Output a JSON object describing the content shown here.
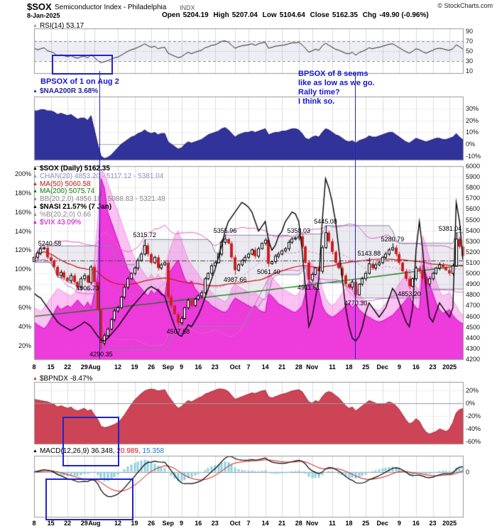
{
  "header": {
    "symbol": "$SOX",
    "name": "Semiconductor Index - Philadelphia",
    "exchange": "INDX",
    "credit": "© StockCharts.com",
    "date": "8-Jan-2025",
    "open_label": "Open",
    "open": "5204.19",
    "high_label": "High",
    "high": "5207.04",
    "low_label": "Low",
    "low": "5104.64",
    "close_label": "Close",
    "close": "5162.35",
    "chg_label": "Chg",
    "chg": "-49.90 (-0.96%)"
  },
  "annotations": {
    "note1": "BPSOX of 1 on Aug 2",
    "note2_lines": [
      "BPSOX of 8 seems",
      "like as low as we go.",
      "Rally time?",
      "I think so."
    ],
    "color": "#1515d0"
  },
  "panels": {
    "rsi": {
      "label": "RSI(14) 53.17",
      "marker_color": "#999999"
    },
    "naa200r": {
      "label": "$NAA200R 3.68%",
      "marker_color": "#2a2a9a"
    },
    "sox": {
      "legend": [
        {
          "text": "$SOX (Daily) 5162.35",
          "color": "#000000",
          "bold": true
        },
        {
          "text": "CHAN(20) 4853.20 - 5117.12 - 5381.04",
          "color": "#8f8fc0",
          "bold": false
        },
        {
          "text": "MA(50) 5060.58",
          "color": "#cc1111",
          "bold": false
        },
        {
          "text": "MA(200) 5075.74",
          "color": "#0b7a0b",
          "bold": false
        },
        {
          "text": "BB(20,2.0) 4856.18 - 5088.83 - 5321.48",
          "color": "#888888",
          "bold": false
        },
        {
          "text": "$NASI 21.57% (7 Jan)",
          "color": "#000000",
          "bold": true
        },
        {
          "text": "%B(20,2,0) 0.66",
          "color": "#888888",
          "bold": false
        },
        {
          "text": "$VIX 43.09%",
          "color": "#cc00cc",
          "bold": false
        }
      ]
    },
    "bpndx": {
      "label": "$BPNDX -8.47%",
      "marker_color": "#cc3344"
    },
    "macd": {
      "name": "MACD(12,26,9)",
      "v1": "36.348,",
      "v2": "20.989,",
      "v3": "15.358",
      "marker_color": "#000000"
    }
  },
  "chart_data": {
    "type": "multi-panel-financial",
    "title": "$SOX Semiconductor Index - Philadelphia (Daily)",
    "x_ticks": [
      [
        "8",
        0
      ],
      [
        "15",
        5
      ],
      [
        "22",
        10
      ],
      [
        "29",
        15
      ],
      [
        "Aug",
        18
      ],
      [
        "12",
        25
      ],
      [
        "19",
        30
      ],
      [
        "26",
        35
      ],
      [
        "Sep",
        40
      ],
      [
        "9",
        44
      ],
      [
        "16",
        49
      ],
      [
        "23",
        54
      ],
      [
        "Oct",
        60
      ],
      [
        "7",
        64
      ],
      [
        "14",
        69
      ],
      [
        "21",
        74
      ],
      [
        "28",
        79
      ],
      [
        "Nov",
        83
      ],
      [
        "11",
        89
      ],
      [
        "18",
        94
      ],
      [
        "25",
        99
      ],
      [
        "Dec",
        104
      ],
      [
        "9",
        109
      ],
      [
        "16",
        114
      ],
      [
        "23",
        119
      ],
      [
        "2025",
        124
      ]
    ],
    "axes": {
      "rsi": [
        "90",
        "70",
        "50",
        "30",
        "10"
      ],
      "naa200r": [
        "30%",
        "20%",
        "10%",
        "0%",
        "-10%"
      ],
      "sox_right": [
        "6000",
        "5900",
        "5800",
        "5700",
        "5600",
        "5500",
        "5400",
        "5300",
        "5200",
        "5100",
        "5000",
        "4900",
        "4800",
        "4700",
        "4600",
        "4500",
        "4400",
        "4300",
        "4200"
      ],
      "sox_left": [
        "200%",
        "180%",
        "160%",
        "140%",
        "120%",
        "100%",
        "80%",
        "60%",
        "40%",
        "20%"
      ],
      "bpndx": [
        "20%",
        "0%",
        "-20%",
        "-40%",
        "-60%"
      ],
      "macd": [
        "0"
      ]
    },
    "rsi": [
      55,
      52,
      54,
      56,
      50,
      48,
      45,
      40,
      42,
      40,
      38,
      40,
      37,
      35,
      38,
      39,
      36,
      42,
      37,
      30,
      26,
      28,
      30,
      33,
      36,
      37,
      41,
      45,
      49,
      52,
      54,
      57,
      60,
      64,
      60,
      57,
      59,
      54,
      56,
      57,
      45,
      42,
      39,
      36,
      38,
      43,
      47,
      44,
      47,
      49,
      51,
      56,
      58,
      61,
      62,
      65,
      69,
      70,
      67,
      61,
      55,
      58,
      60,
      61,
      62,
      64,
      61,
      64,
      66,
      67,
      55,
      57,
      59,
      60,
      61,
      62,
      64,
      66,
      66,
      67,
      62,
      55,
      47,
      50,
      53,
      51,
      60,
      65,
      61,
      57,
      53,
      51,
      48,
      45,
      44,
      47,
      41,
      46,
      49,
      52,
      56,
      54,
      56,
      57,
      59,
      61,
      63,
      64,
      60,
      56,
      52,
      48,
      45,
      49,
      54,
      52,
      48,
      45,
      48,
      51,
      54,
      55,
      54,
      52,
      51,
      54,
      62,
      58,
      53.17
    ],
    "naa200r": [
      28,
      28,
      29,
      29,
      28,
      28,
      27,
      25,
      26,
      25,
      24,
      25,
      23,
      21,
      22,
      22,
      20,
      24,
      12,
      0,
      -10,
      -12,
      -11,
      -9,
      -6,
      -3,
      0,
      2,
      4,
      6,
      7,
      9,
      10,
      12,
      10,
      9,
      10,
      8,
      9,
      9,
      2,
      0,
      -2,
      -4,
      -3,
      0,
      2,
      1,
      2,
      3,
      4,
      6,
      8,
      9,
      10,
      11,
      13,
      14,
      12,
      9,
      6,
      8,
      9,
      10,
      10,
      11,
      10,
      11,
      12,
      13,
      8,
      9,
      10,
      10,
      11,
      11,
      12,
      13,
      13,
      12,
      9,
      5,
      4,
      6,
      7,
      6,
      10,
      13,
      12,
      10,
      8,
      7,
      5,
      3,
      2,
      3,
      1,
      3,
      4,
      5,
      7,
      6,
      6,
      7,
      8,
      9,
      10,
      10,
      8,
      6,
      4,
      2,
      1,
      3,
      5,
      4,
      3,
      2,
      3,
      4,
      5,
      5,
      4,
      4,
      5,
      6,
      9,
      6,
      3.68
    ],
    "close": [
      5150,
      5190,
      5230,
      5238,
      5150,
      5120,
      5060,
      4980,
      5010,
      4960,
      4930,
      4980,
      4920,
      4870,
      4950,
      4980,
      4915,
      5060,
      4920,
      4660,
      4350,
      4420,
      4480,
      4570,
      4650,
      4680,
      4780,
      4870,
      4950,
      5000,
      5050,
      5120,
      5180,
      5260,
      5180,
      5100,
      5150,
      5050,
      5080,
      5100,
      4780,
      4700,
      4620,
      4540,
      4580,
      4680,
      4750,
      4700,
      4760,
      4790,
      4820,
      4950,
      5000,
      5070,
      5100,
      5180,
      5290,
      5320,
      5280,
      5150,
      5030,
      5080,
      5120,
      5150,
      5180,
      5220,
      5160,
      5230,
      5280,
      5310,
      5090,
      5110,
      5160,
      5180,
      5210,
      5230,
      5290,
      5320,
      5330,
      5345,
      5250,
      5100,
      4940,
      4990,
      5050,
      5020,
      5240,
      5380,
      5300,
      5200,
      5100,
      5050,
      4980,
      4900,
      4870,
      4920,
      4800,
      4900,
      4950,
      5000,
      5090,
      5050,
      5080,
      5100,
      5150,
      5180,
      5220,
      5240,
      5180,
      5100,
      5020,
      4950,
      4880,
      4950,
      5050,
      5020,
      4950,
      4900,
      4950,
      5000,
      5050,
      5080,
      5060,
      5030,
      5000,
      5070,
      5320,
      5250,
      5162.35
    ],
    "price_labels": [
      [
        3,
        "5240.58",
        "a"
      ],
      [
        16,
        "4906.73",
        "b"
      ],
      [
        20,
        "4290.35",
        "b"
      ],
      [
        33,
        "5315.72",
        "a"
      ],
      [
        43,
        "4507.68",
        "b"
      ],
      [
        57,
        "5355.96",
        "a"
      ],
      [
        60,
        "4987.66",
        "b"
      ],
      [
        70,
        "5061.40",
        "b"
      ],
      [
        79,
        "5358.03",
        "a"
      ],
      [
        82,
        "4911.61",
        "b"
      ],
      [
        87,
        "5445.08",
        "a"
      ],
      [
        96,
        "4770.30",
        "b"
      ],
      [
        100,
        "5143.88",
        "a"
      ],
      [
        107,
        "5280.79",
        "a"
      ],
      [
        112,
        "4853.20",
        "b"
      ],
      [
        126,
        "5381.04",
        "a"
      ]
    ],
    "chan_mid_line": 5117.12,
    "ma200": {
      "start": 4600,
      "mid": 4810,
      "end": 5076
    },
    "nasi": [
      75,
      72,
      70,
      65,
      60,
      55,
      50,
      45,
      42,
      40,
      38,
      36,
      38,
      40,
      42,
      45,
      43,
      40,
      35,
      30,
      26,
      25,
      28,
      32,
      36,
      40,
      45,
      50,
      55,
      60,
      64,
      68,
      72,
      76,
      80,
      82,
      80,
      78,
      74,
      72,
      60,
      50,
      40,
      32,
      30,
      36,
      42,
      40,
      46,
      52,
      60,
      70,
      80,
      90,
      100,
      112,
      125,
      140,
      150,
      155,
      160,
      165,
      170,
      168,
      165,
      160,
      150,
      140,
      145,
      150,
      130,
      120,
      125,
      135,
      140,
      150,
      155,
      160,
      158,
      150,
      120,
      80,
      40,
      50,
      70,
      90,
      150,
      195,
      185,
      170,
      150,
      120,
      90,
      60,
      40,
      28,
      25,
      30,
      40,
      55,
      65,
      60,
      55,
      50,
      55,
      60,
      70,
      80,
      75,
      65,
      55,
      45,
      40,
      60,
      120,
      150,
      120,
      80,
      50,
      45,
      55,
      65,
      60,
      55,
      50,
      60,
      170,
      150,
      110
    ],
    "vix_outer": [
      60,
      58,
      56,
      60,
      65,
      70,
      75,
      80,
      78,
      76,
      74,
      72,
      75,
      80,
      78,
      74,
      80,
      85,
      110,
      150,
      205,
      200,
      190,
      180,
      170,
      160,
      150,
      140,
      130,
      120,
      112,
      106,
      100,
      95,
      90,
      95,
      90,
      95,
      90,
      86,
      115,
      125,
      135,
      140,
      130,
      120,
      110,
      105,
      100,
      95,
      90,
      85,
      80,
      76,
      72,
      70,
      68,
      66,
      70,
      80,
      85,
      82,
      80,
      78,
      76,
      74,
      76,
      72,
      70,
      68,
      95,
      92,
      88,
      84,
      80,
      78,
      76,
      74,
      72,
      75,
      80,
      95,
      110,
      105,
      100,
      95,
      80,
      70,
      65,
      62,
      65,
      70,
      75,
      80,
      85,
      78,
      82,
      75,
      70,
      65,
      62,
      60,
      58,
      57,
      60,
      65,
      70,
      75,
      80,
      85,
      90,
      95,
      100,
      88,
      82,
      78,
      135,
      125,
      112,
      100,
      88,
      78,
      72,
      74,
      76,
      68,
      62,
      56,
      52
    ],
    "vix": [
      45,
      42,
      40,
      38,
      42,
      48,
      55,
      62,
      58,
      60,
      62,
      60,
      64,
      68,
      64,
      60,
      66,
      60,
      75,
      95,
      195,
      185,
      160,
      150,
      140,
      130,
      120,
      110,
      100,
      95,
      88,
      84,
      80,
      76,
      72,
      78,
      74,
      80,
      76,
      72,
      95,
      100,
      105,
      110,
      100,
      90,
      85,
      88,
      80,
      76,
      72,
      68,
      66,
      62,
      60,
      58,
      56,
      55,
      58,
      65,
      70,
      68,
      66,
      64,
      62,
      60,
      62,
      58,
      56,
      55,
      75,
      72,
      68,
      64,
      62,
      60,
      58,
      56,
      55,
      58,
      62,
      75,
      88,
      85,
      80,
      78,
      62,
      55,
      52,
      50,
      52,
      55,
      58,
      62,
      65,
      60,
      64,
      58,
      55,
      52,
      50,
      48,
      46,
      45,
      46,
      48,
      50,
      52,
      56,
      60,
      64,
      68,
      72,
      65,
      60,
      58,
      105,
      95,
      85,
      75,
      65,
      58,
      54,
      56,
      58,
      52,
      48,
      45,
      43
    ],
    "bpndx": [
      6,
      5,
      4,
      3,
      2,
      0,
      -2,
      -6,
      -4,
      -6,
      -8,
      -6,
      -10,
      -12,
      -10,
      -8,
      -12,
      -10,
      -18,
      -25,
      -36,
      -38,
      -37,
      -35,
      -33,
      -30,
      -25,
      -18,
      -10,
      -2,
      5,
      10,
      15,
      19,
      21,
      22,
      21,
      19,
      20,
      21,
      12,
      5,
      -2,
      -8,
      -5,
      0,
      4,
      2,
      5,
      8,
      10,
      14,
      16,
      18,
      20,
      22,
      22,
      21,
      18,
      12,
      6,
      8,
      10,
      12,
      14,
      16,
      15,
      17,
      19,
      20,
      10,
      8,
      10,
      12,
      14,
      15,
      17,
      19,
      20,
      21,
      18,
      10,
      2,
      0,
      4,
      2,
      10,
      16,
      18,
      16,
      12,
      8,
      2,
      -4,
      -8,
      -6,
      -12,
      -8,
      -4,
      0,
      4,
      2,
      0,
      -2,
      -2,
      0,
      2,
      0,
      -4,
      -10,
      -18,
      -26,
      -32,
      -30,
      -24,
      -28,
      -38,
      -45,
      -48,
      -46,
      -44,
      -40,
      -42,
      -44,
      -40,
      -30,
      -15,
      -10,
      -8.47
    ]
  }
}
